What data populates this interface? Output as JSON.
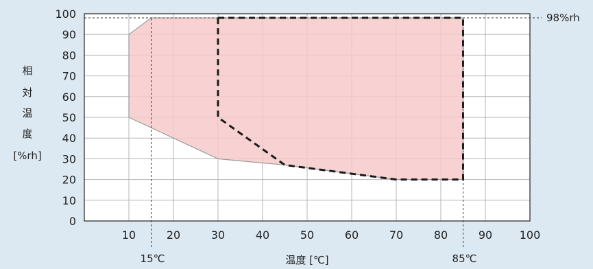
{
  "chart_data": {
    "type": "area",
    "xlabel": "温度 [℃]",
    "ylabel": [
      "相",
      "対",
      "温",
      "度",
      "[%rh]"
    ],
    "xlim": [
      0,
      100
    ],
    "ylim": [
      0,
      100
    ],
    "xticks": [
      10,
      20,
      30,
      40,
      50,
      60,
      70,
      80,
      90,
      100
    ],
    "yticks": [
      0,
      10,
      20,
      30,
      40,
      50,
      60,
      70,
      80,
      90,
      100
    ],
    "grid": true,
    "regions": [
      {
        "style": "filled",
        "color": "#f7caca",
        "edge_color": "#9a9a9a",
        "points": [
          [
            10,
            90
          ],
          [
            15,
            98
          ],
          [
            85,
            98
          ],
          [
            85,
            20
          ],
          [
            70,
            20
          ],
          [
            45,
            27
          ],
          [
            30,
            30
          ],
          [
            10,
            50
          ]
        ]
      },
      {
        "style": "dashed",
        "color": "#1a1a1a",
        "points": [
          [
            30,
            98
          ],
          [
            85,
            98
          ],
          [
            85,
            20
          ],
          [
            70,
            20
          ],
          [
            45,
            27
          ],
          [
            30,
            50
          ]
        ]
      }
    ],
    "reference_lines": [
      {
        "axis": "y",
        "value": 98,
        "label": "98%rh"
      },
      {
        "axis": "x",
        "value": 15,
        "label": "15℃"
      },
      {
        "axis": "x",
        "value": 85,
        "label": "85℃"
      }
    ]
  }
}
